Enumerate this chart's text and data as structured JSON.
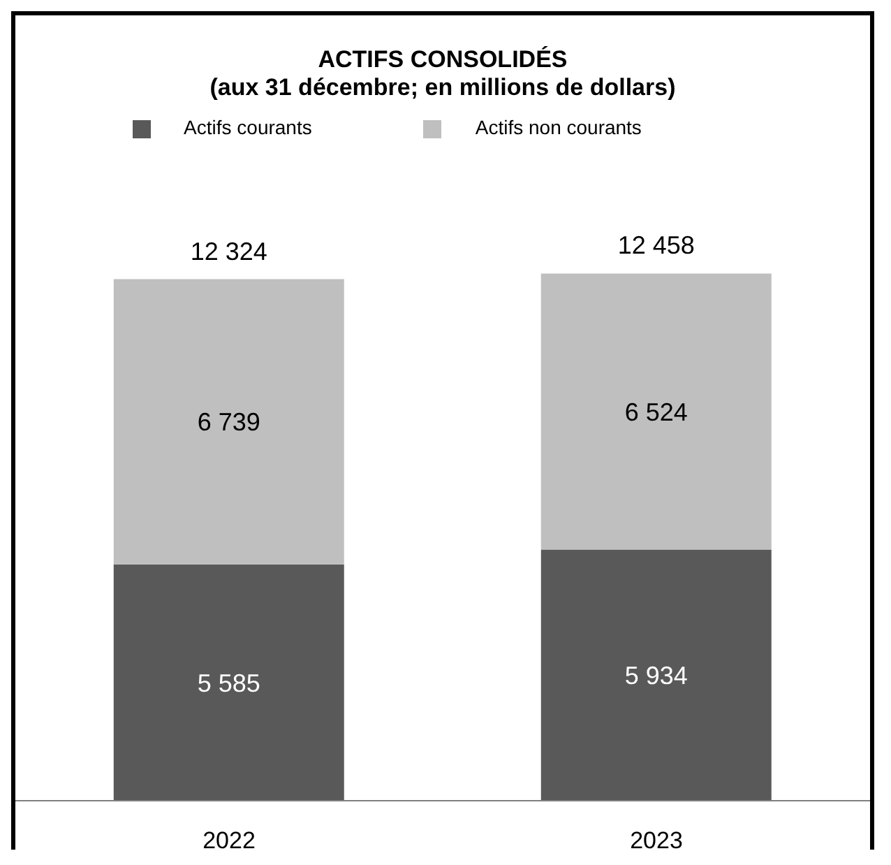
{
  "chart_data": {
    "type": "bar",
    "title": "ACTIFS CONSOLIDÉS",
    "subtitle": "(aux 31 décembre; en millions de dollars)",
    "categories": [
      "2022",
      "2023"
    ],
    "stacked": true,
    "legend": "top",
    "grid": false,
    "tick_labels": "x",
    "series": [
      {
        "name": "Actifs courants",
        "color": "#595959",
        "values": [
          5585,
          5934
        ],
        "value_labels": [
          "5 585",
          "5 934"
        ]
      },
      {
        "name": "Actifs non courants",
        "color": "#bfbfbf",
        "values": [
          6739,
          6524
        ],
        "value_labels": [
          "6 739",
          "6 524"
        ]
      }
    ],
    "totals": [
      "12 324",
      "12 458"
    ]
  }
}
